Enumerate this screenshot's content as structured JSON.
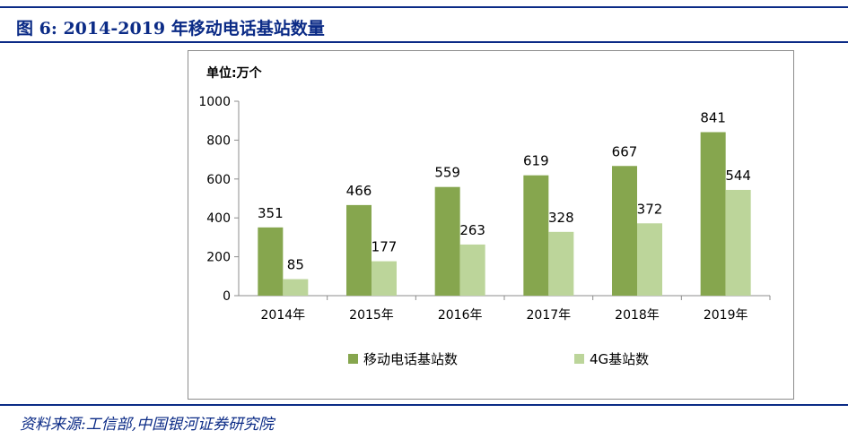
{
  "figure": {
    "title": "图 6:  2014-2019 年移动电话基站数量",
    "source": "资料来源:工信部,中国银河证券研究院",
    "unit_label": "单位:万个"
  },
  "colors": {
    "title": "#0b2b86",
    "series_dark": "#86a64e",
    "series_light": "#bcd59a"
  },
  "chart_data": {
    "type": "bar",
    "categories": [
      "2014年",
      "2015年",
      "2016年",
      "2017年",
      "2018年",
      "2019年"
    ],
    "series": [
      {
        "name": "移动电话基站数",
        "values": [
          351,
          466,
          559,
          619,
          667,
          841
        ]
      },
      {
        "name": "4G基站数",
        "values": [
          85,
          177,
          263,
          328,
          372,
          544
        ]
      }
    ],
    "y_ticks": [
      0,
      200,
      400,
      600,
      800,
      1000
    ],
    "ylim": [
      0,
      1000
    ],
    "grid": false,
    "legend_position": "bottom"
  }
}
